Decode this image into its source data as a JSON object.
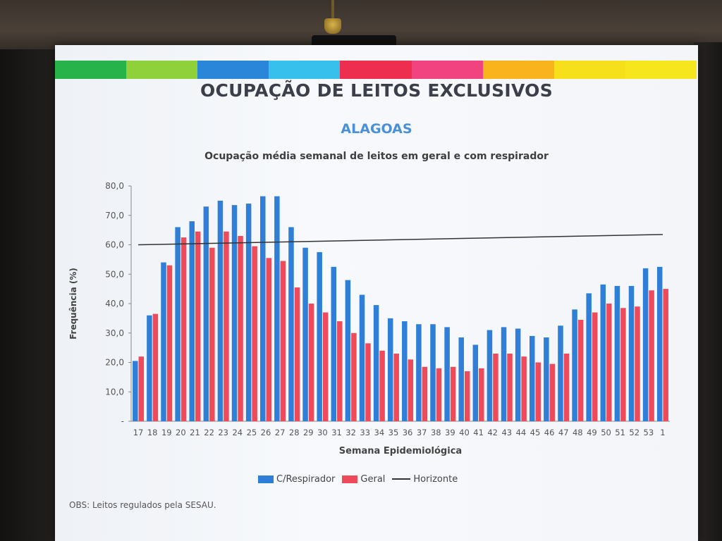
{
  "slide": {
    "title": "OCUPAÇÃO DE LEITOS EXCLUSIVOS",
    "subtitle": "ALAGOAS",
    "note": "OBS: Leitos regulados pela SESAU.",
    "header_colors": [
      "#27b24a",
      "#8fd13a",
      "#2a86d8",
      "#37c0ec",
      "#ee2e4f",
      "#f0437f",
      "#f9b41d",
      "#f5e01b",
      "#f5e61e"
    ]
  },
  "chart_data": {
    "type": "bar",
    "title": "Ocupação média semanal de leitos em geral e com respirador",
    "xlabel": "Semana Epidemiológica",
    "ylabel": "Frequência (%)",
    "ylim": [
      0,
      80
    ],
    "yticks": [
      "-",
      "10,0",
      "20,0",
      "30,0",
      "40,0",
      "50,0",
      "60,0",
      "70,0",
      "80,0"
    ],
    "categories": [
      "17",
      "18",
      "19",
      "20",
      "21",
      "22",
      "23",
      "24",
      "25",
      "26",
      "27",
      "28",
      "29",
      "30",
      "31",
      "32",
      "33",
      "34",
      "35",
      "36",
      "37",
      "38",
      "39",
      "40",
      "41",
      "42",
      "43",
      "44",
      "45",
      "46",
      "47",
      "48",
      "49",
      "50",
      "51",
      "52",
      "53",
      "1"
    ],
    "series": [
      {
        "name": "C/Respirador",
        "color": "#2f7fd8",
        "values": [
          20.5,
          36.0,
          54.0,
          66.0,
          68.0,
          73.0,
          75.0,
          73.5,
          74.0,
          76.5,
          76.5,
          66.0,
          59.0,
          57.5,
          52.5,
          48.0,
          43.0,
          39.5,
          35.0,
          34.0,
          33.0,
          33.0,
          32.0,
          28.5,
          26.0,
          31.0,
          32.0,
          31.5,
          29.0,
          28.5,
          32.5,
          38.0,
          43.5,
          46.5,
          46.0,
          46.0,
          52.0,
          52.5
        ]
      },
      {
        "name": "Geral",
        "color": "#ee4a5a",
        "values": [
          22.0,
          36.5,
          53.0,
          62.5,
          64.5,
          59.0,
          64.5,
          63.0,
          59.5,
          55.5,
          54.5,
          45.5,
          40.0,
          37.0,
          34.0,
          30.0,
          26.5,
          24.0,
          23.0,
          21.0,
          18.5,
          18.0,
          18.5,
          17.0,
          18.0,
          23.0,
          23.0,
          22.0,
          20.0,
          19.5,
          23.0,
          34.5,
          37.0,
          40.0,
          38.5,
          39.0,
          44.5,
          45.0
        ]
      }
    ],
    "reference_line": {
      "name": "Horizonte",
      "color": "#333333",
      "start": 60.0,
      "end": 63.5
    },
    "grid": false,
    "legend_position": "bottom"
  }
}
